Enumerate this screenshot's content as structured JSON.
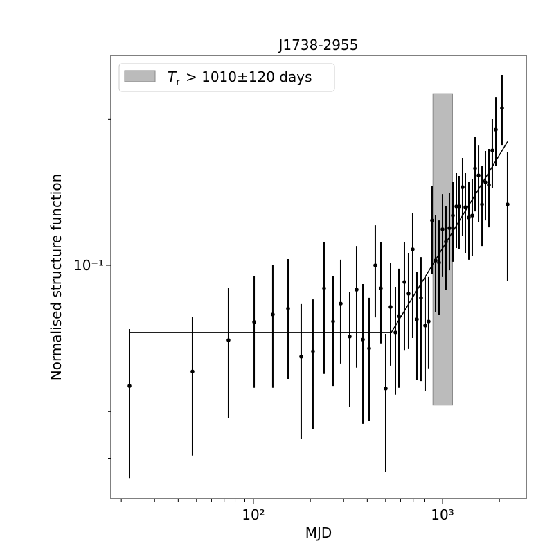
{
  "chart_data": {
    "type": "scatter",
    "title": "J1738-2955",
    "xlabel": "MJD",
    "ylabel": "Normalised structure function",
    "xscale": "log",
    "yscale": "log",
    "xlim": [
      17.6,
      2775
    ],
    "ylim": [
      0.033,
      0.271
    ],
    "xticks": [
      {
        "value": 100,
        "label": "10²"
      },
      {
        "value": 1000,
        "label": "10³"
      }
    ],
    "xminor": [
      20,
      30,
      40,
      50,
      60,
      70,
      80,
      90,
      200,
      300,
      400,
      500,
      600,
      700,
      800,
      900,
      2000
    ],
    "yticks": [
      {
        "value": 0.1,
        "label": "10⁻¹"
      }
    ],
    "yminor": [
      0.04,
      0.05,
      0.2
    ],
    "series": [
      {
        "color": "#000000",
        "x": [
          22.1,
          47.6,
          73.8,
          100.9,
          126.6,
          152.5,
          178.9,
          206.5,
          236.4,
          263.8,
          289.4,
          323.0,
          351.4,
          379.2,
          409.1,
          441.1,
          472.1,
          500.8,
          531.3,
          563.6,
          587.9,
          628.8,
          661.4,
          695.8,
          731.9,
          769.7,
          809.7,
          844.5,
          881.0,
          919.0,
          958.8,
          1000,
          1043,
          1088,
          1135,
          1184,
          1224,
          1277,
          1321,
          1378,
          1437,
          1487,
          1551,
          1618,
          1687,
          1760,
          1835,
          1915,
          2065,
          2209
        ],
        "y": [
          0.0564,
          0.0604,
          0.0701,
          0.0764,
          0.0792,
          0.0815,
          0.0648,
          0.0665,
          0.0897,
          0.0766,
          0.0834,
          0.0713,
          0.0891,
          0.0703,
          0.0674,
          0.1,
          0.0897,
          0.0557,
          0.0821,
          0.0727,
          0.0786,
          0.0924,
          0.0874,
          0.1079,
          0.0774,
          0.0857,
          0.0751,
          0.0766,
          0.1238,
          0.1023,
          0.1013,
          0.1187,
          0.1118,
          0.1194,
          0.1267,
          0.1323,
          0.1323,
          0.145,
          0.1318,
          0.1255,
          0.1267,
          0.1585,
          0.1533,
          0.1336,
          0.1484,
          0.1465,
          0.1726,
          0.1905,
          0.211,
          0.1336
        ],
        "y_lower": [
          0.0364,
          0.0405,
          0.0485,
          0.0559,
          0.0559,
          0.0583,
          0.0439,
          0.046,
          0.0597,
          0.0564,
          0.0627,
          0.051,
          0.0615,
          0.0471,
          0.0477,
          0.0781,
          0.069,
          0.0374,
          0.0621,
          0.0541,
          0.0559,
          0.0669,
          0.0672,
          0.0708,
          0.0581,
          0.0577,
          0.055,
          0.0613,
          0.0961,
          0.0802,
          0.0789,
          0.0946,
          0.0891,
          0.0977,
          0.1017,
          0.1086,
          0.1079,
          0.1152,
          0.1061,
          0.1027,
          0.1044,
          0.1292,
          0.123,
          0.1096,
          0.1238,
          0.1198,
          0.1441,
          0.1601,
          0.1766,
          0.0927
        ],
        "y_upper": [
          0.0739,
          0.0784,
          0.0897,
          0.0952,
          0.1003,
          0.103,
          0.0832,
          0.0851,
          0.1118,
          0.0952,
          0.1027,
          0.088,
          0.1096,
          0.0915,
          0.0857,
          0.121,
          0.1118,
          0.0722,
          0.101,
          0.0903,
          0.0984,
          0.1115,
          0.1061,
          0.128,
          0.0971,
          0.104,
          0.0946,
          0.0946,
          0.146,
          0.1271,
          0.1238,
          0.1403,
          0.1323,
          0.1413,
          0.1489,
          0.1549,
          0.1529,
          0.1665,
          0.1549,
          0.1489,
          0.1509,
          0.1838,
          0.1766,
          0.1601,
          0.1721,
          0.1738,
          0.2002,
          0.2224,
          0.2471,
          0.171
        ]
      }
    ],
    "fit": {
      "color": "#000000",
      "x": [
        22.1,
        536,
        2209
      ],
      "y": [
        0.0727,
        0.0727,
        0.18
      ]
    },
    "region": {
      "color": "#bbbbbb",
      "x": [
        890,
        1130
      ],
      "y": [
        0.0515,
        0.226
      ],
      "label": {
        "symbol": "T",
        "subscript": "r",
        "text": "> 1010±120 days"
      }
    },
    "legend": "upper left"
  }
}
